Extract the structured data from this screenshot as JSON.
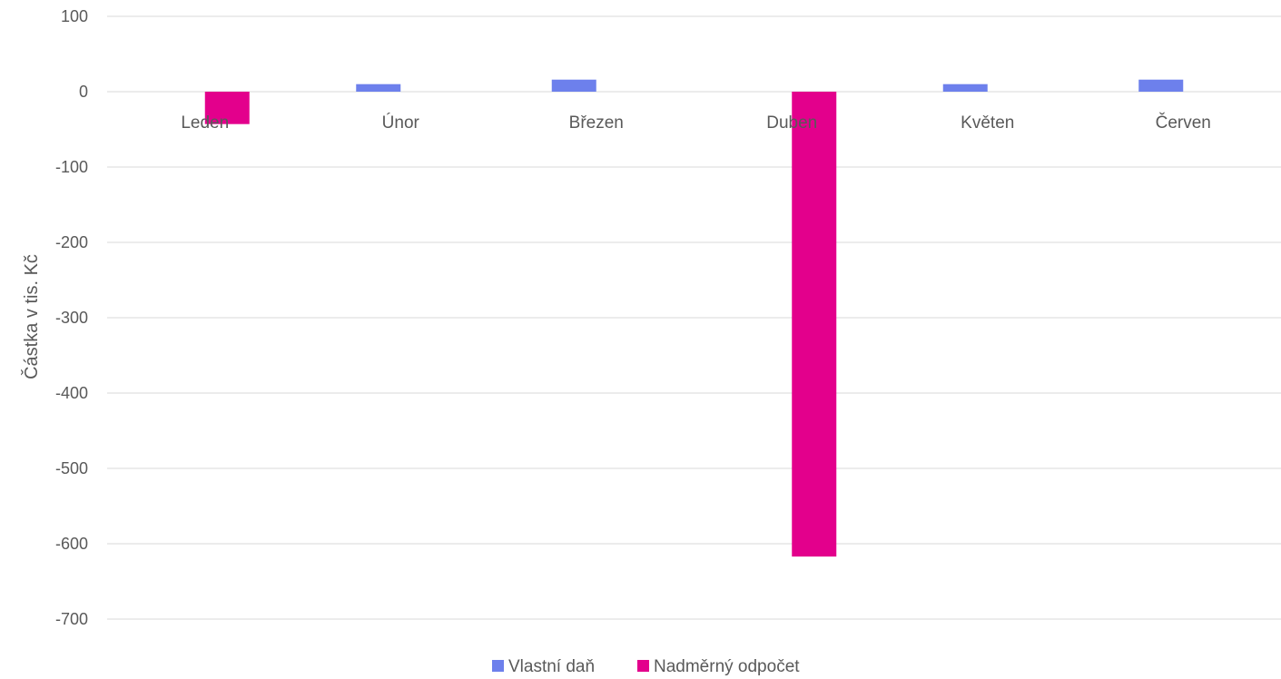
{
  "chart_data": {
    "type": "bar",
    "title": "",
    "xlabel": "",
    "ylabel": "Částka v tis. Kč",
    "ylim": [
      -700,
      100
    ],
    "yticks": [
      100,
      0,
      -100,
      -200,
      -300,
      -400,
      -500,
      -600,
      -700
    ],
    "grid": true,
    "legend_position": "bottom",
    "categories": [
      "Leden",
      "Únor",
      "Březen",
      "Duben",
      "Květen",
      "Červen"
    ],
    "series": [
      {
        "name": "Vlastní daň",
        "color": "#6d80ec",
        "values": [
          0,
          10,
          16,
          0,
          10,
          16
        ]
      },
      {
        "name": "Nadměrný odpočet",
        "color": "#e3008c",
        "values": [
          -43,
          0,
          0,
          -617,
          0,
          0
        ]
      }
    ]
  }
}
